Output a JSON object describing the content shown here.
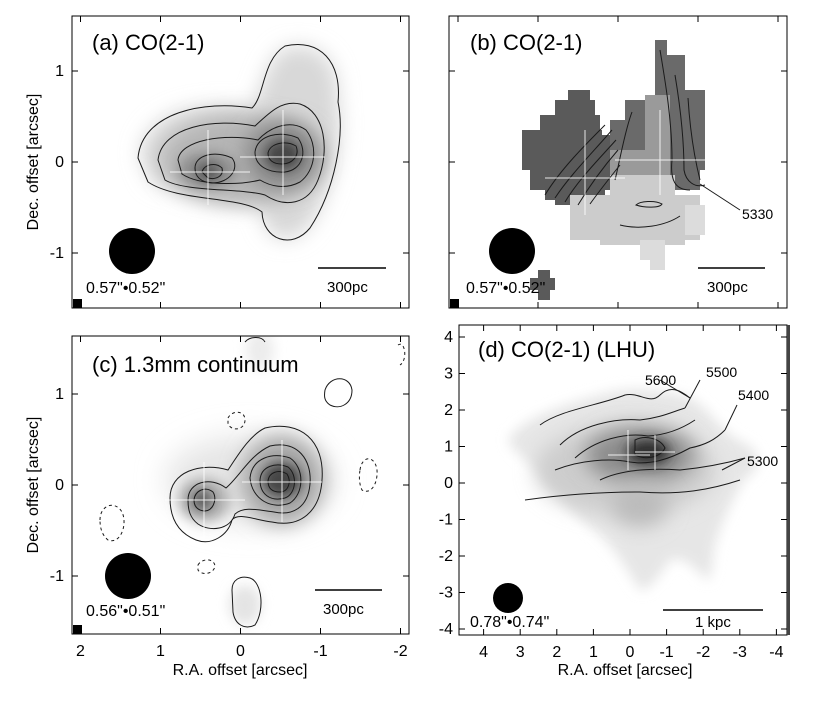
{
  "panels": [
    {
      "id": "a",
      "title": "(a) CO(2-1)",
      "beam": "0.57\"•0.52\"",
      "scale_bar": "300pc"
    },
    {
      "id": "b",
      "title": "(b) CO(2-1)",
      "beam": "0.57\"•0.52\"",
      "scale_bar": "300pc",
      "contour_label": "5330"
    },
    {
      "id": "c",
      "title": "(c) 1.3mm continuum",
      "beam": "0.56\"•0.51\"",
      "scale_bar": "300pc"
    },
    {
      "id": "d",
      "title": "(d) CO(2-1) (LHU)",
      "beam": "0.78\"•0.74\"",
      "scale_bar": "1 kpc",
      "contour_labels": [
        "5600",
        "5500",
        "5400",
        "5300"
      ]
    }
  ],
  "axes": {
    "ylabel": "Dec. offset [arcsec]",
    "xlabel": "R.A. offset [arcsec]",
    "small_y_ticks": [
      "1",
      "0",
      "-1"
    ],
    "small_x_ticks": [
      "2",
      "1",
      "0",
      "-1",
      "-2"
    ],
    "large_y_ticks": [
      "4",
      "3",
      "2",
      "1",
      "0",
      "-1",
      "-2",
      "-3",
      "-4"
    ],
    "large_x_ticks": [
      "4",
      "3",
      "2",
      "1",
      "0",
      "-1",
      "-2",
      "-3",
      "-4"
    ]
  },
  "colors": {
    "frame": "#000000",
    "contour": "#1a1a1a",
    "beam": "#000000",
    "background": "#ffffff"
  }
}
